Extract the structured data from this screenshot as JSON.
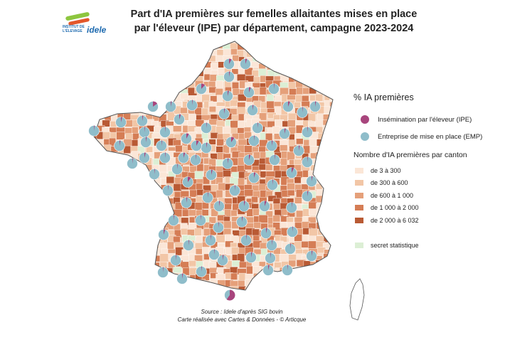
{
  "logo": {
    "line1": "INSTITUT DE",
    "line2": "L'ÉLEVAGE",
    "name": "idele"
  },
  "title": {
    "line1": "Part d'IA premières sur femelles allaitantes mises en place",
    "line2": "par l'éleveur (IPE) par département, campagne 2023-2024"
  },
  "pie_legend": {
    "title": "% IA premières",
    "items": [
      {
        "label": "Insémination par l'éleveur (IPE)",
        "color": "#a8457d"
      },
      {
        "label": "Entreprise de mise en place (EMP)",
        "color": "#8fbdca"
      }
    ]
  },
  "choropleth_legend": {
    "title": "Nombre d'IA premières par canton",
    "classes": [
      {
        "label": "de 3 à 300",
        "color": "#fbe6d7"
      },
      {
        "label": "de 300 à 600",
        "color": "#f2c6a6"
      },
      {
        "label": "de 600 à 1 000",
        "color": "#e5a07a"
      },
      {
        "label": "de 1 000 à 2 000",
        "color": "#d57d55"
      },
      {
        "label": "de 2 000 à 6 032",
        "color": "#b95a34"
      }
    ],
    "secret": {
      "label": "secret statistique",
      "color": "#dcefd5"
    }
  },
  "source": {
    "line1": "Source : Idele d'après SIG bovin",
    "line2": "Carte réalisée avec Cartes & Données - © Articque"
  },
  "map": {
    "ipe_color": "#a8457d",
    "emp_color": "#8fbdca",
    "ipe_shares": [
      0.08,
      0.05,
      0.03,
      0.12,
      0.04,
      0.06,
      0.02,
      0.03,
      0.15,
      0.03,
      0.02,
      0.04,
      0.03,
      0.02,
      0.05,
      0.02,
      0.03,
      0.02,
      0.04,
      0.02,
      0.08,
      0.03,
      0.1,
      0.02,
      0.06,
      0.02,
      0.03,
      0.04,
      0.02,
      0.03,
      0.02,
      0.07,
      0.02,
      0.05,
      0.03,
      0.04,
      0.1,
      0.02,
      0.02,
      0.03,
      0.02,
      0.02,
      0.05,
      0.02,
      0.04,
      0.03,
      0.02,
      0.06,
      0.03,
      0.02,
      0.02,
      0.03,
      0.02,
      0.04,
      0.02,
      0.03,
      0.02,
      0.05,
      0.02,
      0.03,
      0.35,
      0.02,
      0.02,
      0.03,
      0.02,
      0.02,
      0.02,
      0.03,
      0.02,
      0.04,
      0.02,
      0.02,
      0.03,
      0.02,
      0.02,
      0.03,
      0.02,
      0.02,
      0.08,
      0.05,
      0.02,
      0.03,
      0.02,
      0.02,
      0.03,
      0.6
    ]
  }
}
